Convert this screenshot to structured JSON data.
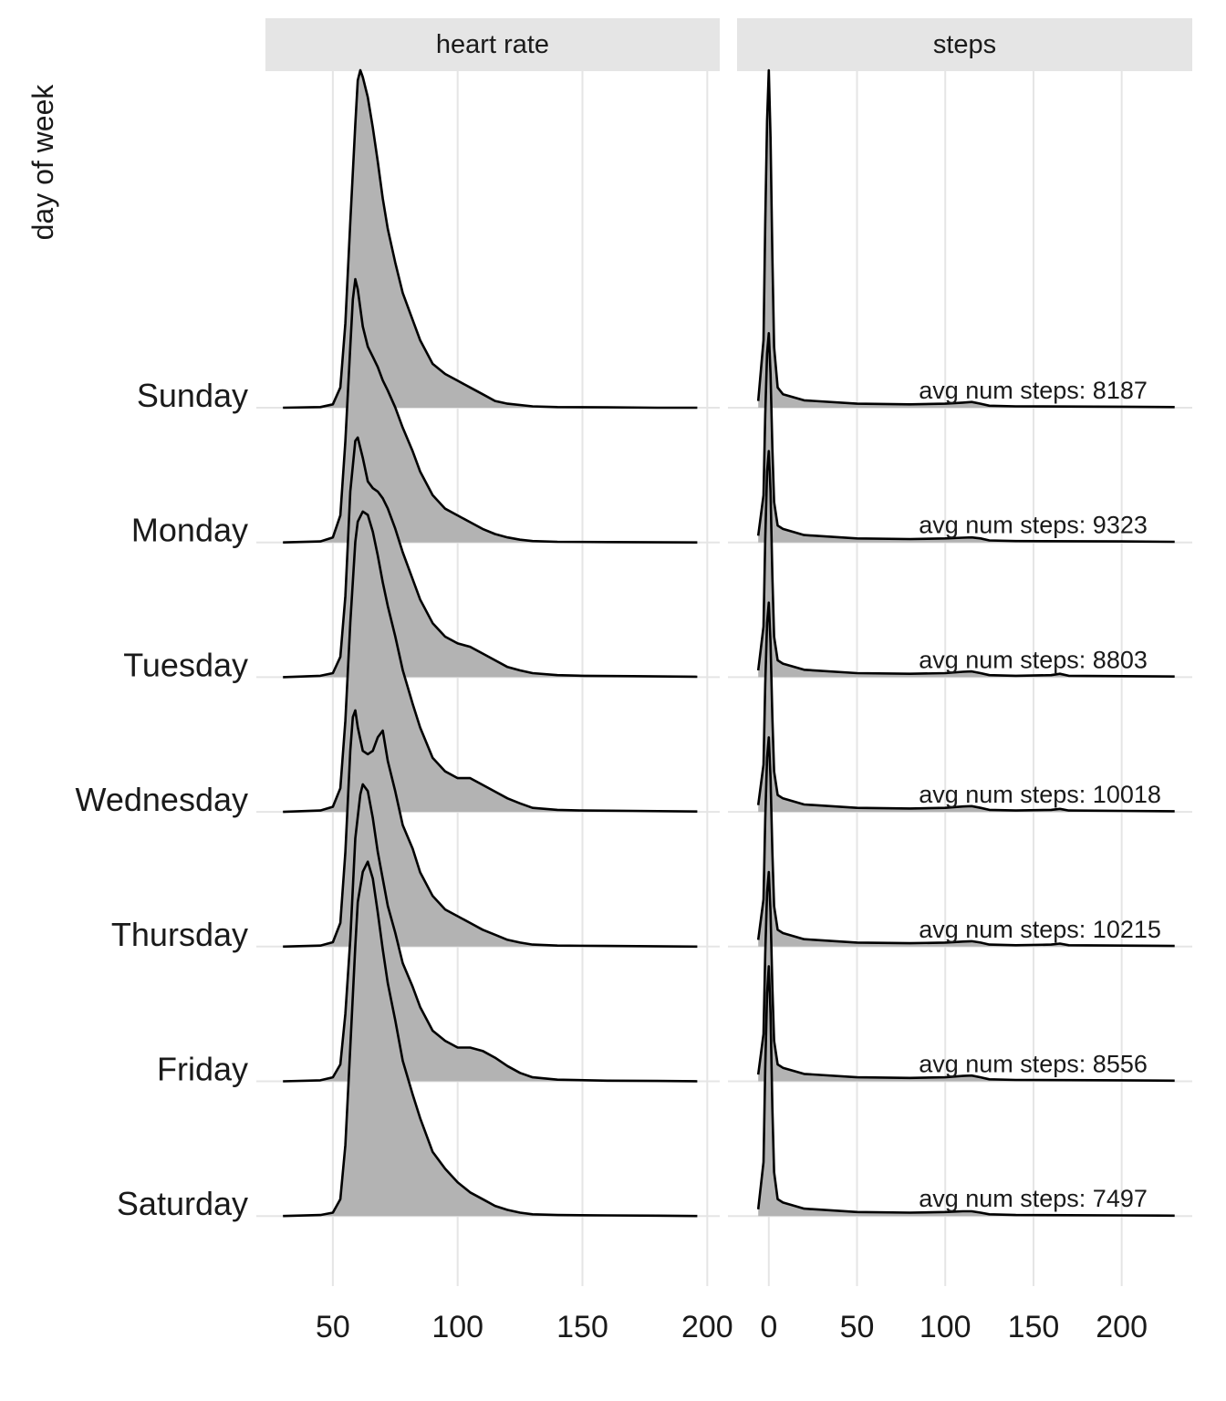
{
  "chart_data": {
    "type": "ridgeline",
    "ylabel": "day of week",
    "xlabel": "",
    "grid": true,
    "legend": "none",
    "fill_color": "#b3b3b3",
    "line_color": "#000000",
    "strip_color": "#e5e5e5",
    "grid_color": "#e5e5e5",
    "categories": [
      "Sunday",
      "Monday",
      "Tuesday",
      "Wednesday",
      "Thursday",
      "Friday",
      "Saturday"
    ],
    "panels": [
      {
        "title": "heart rate",
        "xlim": [
          23,
          205
        ],
        "xticks": [
          50,
          100,
          150,
          200
        ],
        "series": [
          {
            "name": "Sunday",
            "x": [
              30,
              45,
              50,
              53,
              55,
              57,
              59,
              60,
              61,
              62,
              64,
              66,
              68,
              70,
              72,
              75,
              78,
              82,
              85,
              90,
              95,
              100,
              105,
              110,
              115,
              120,
              130,
              140,
              160,
              180,
              196
            ],
            "density": [
              0,
              0.002,
              0.01,
              0.06,
              0.25,
              0.55,
              0.84,
              0.97,
              1.0,
              0.98,
              0.92,
              0.83,
              0.73,
              0.62,
              0.53,
              0.43,
              0.34,
              0.26,
              0.2,
              0.13,
              0.1,
              0.08,
              0.06,
              0.04,
              0.02,
              0.012,
              0.004,
              0.002,
              0.001,
              0,
              0
            ]
          },
          {
            "name": "Monday",
            "x": [
              30,
              45,
              50,
              53,
              55,
              57,
              58,
              59,
              60,
              62,
              64,
              66,
              68,
              70,
              72,
              75,
              78,
              82,
              85,
              90,
              95,
              100,
              105,
              110,
              115,
              120,
              125,
              130,
              140,
              160,
              196
            ],
            "density": [
              0,
              0.003,
              0.015,
              0.08,
              0.3,
              0.58,
              0.72,
              0.78,
              0.75,
              0.64,
              0.58,
              0.55,
              0.52,
              0.48,
              0.45,
              0.4,
              0.34,
              0.27,
              0.21,
              0.14,
              0.1,
              0.08,
              0.06,
              0.04,
              0.025,
              0.015,
              0.008,
              0.004,
              0.002,
              0.001,
              0
            ]
          },
          {
            "name": "Tuesday",
            "x": [
              30,
              45,
              50,
              53,
              55,
              57,
              59,
              60,
              62,
              64,
              66,
              68,
              70,
              72,
              75,
              78,
              82,
              85,
              90,
              95,
              100,
              105,
              110,
              115,
              120,
              125,
              130,
              140,
              150,
              170,
              196
            ],
            "density": [
              0,
              0.004,
              0.012,
              0.06,
              0.24,
              0.55,
              0.7,
              0.71,
              0.65,
              0.58,
              0.56,
              0.55,
              0.53,
              0.5,
              0.44,
              0.37,
              0.29,
              0.23,
              0.16,
              0.12,
              0.1,
              0.09,
              0.07,
              0.05,
              0.03,
              0.02,
              0.012,
              0.006,
              0.004,
              0.003,
              0.001
            ]
          },
          {
            "name": "Wednesday",
            "x": [
              30,
              45,
              50,
              53,
              55,
              57,
              59,
              60,
              62,
              64,
              66,
              68,
              70,
              72,
              75,
              78,
              82,
              85,
              90,
              95,
              100,
              105,
              110,
              115,
              120,
              125,
              130,
              140,
              150,
              170,
              196
            ],
            "density": [
              0,
              0.004,
              0.015,
              0.07,
              0.27,
              0.56,
              0.8,
              0.86,
              0.89,
              0.88,
              0.83,
              0.76,
              0.68,
              0.61,
              0.52,
              0.42,
              0.32,
              0.25,
              0.16,
              0.12,
              0.1,
              0.1,
              0.08,
              0.06,
              0.04,
              0.025,
              0.012,
              0.006,
              0.004,
              0.003,
              0.001
            ]
          },
          {
            "name": "Thursday",
            "x": [
              30,
              45,
              50,
              53,
              55,
              57,
              58,
              59,
              60,
              62,
              64,
              66,
              68,
              70,
              72,
              75,
              78,
              82,
              85,
              90,
              95,
              100,
              105,
              110,
              115,
              120,
              125,
              130,
              140,
              160,
              196
            ],
            "density": [
              0,
              0.003,
              0.013,
              0.07,
              0.28,
              0.58,
              0.68,
              0.7,
              0.65,
              0.58,
              0.57,
              0.58,
              0.62,
              0.64,
              0.55,
              0.46,
              0.36,
              0.29,
              0.22,
              0.15,
              0.11,
              0.09,
              0.07,
              0.05,
              0.035,
              0.02,
              0.012,
              0.006,
              0.003,
              0.002,
              0
            ]
          },
          {
            "name": "Friday",
            "x": [
              30,
              45,
              50,
              53,
              55,
              57,
              59,
              61,
              62,
              64,
              66,
              68,
              70,
              72,
              75,
              78,
              82,
              85,
              90,
              95,
              100,
              105,
              110,
              115,
              120,
              125,
              130,
              140,
              160,
              180,
              196
            ],
            "density": [
              0,
              0.003,
              0.012,
              0.05,
              0.2,
              0.42,
              0.72,
              0.85,
              0.88,
              0.86,
              0.78,
              0.68,
              0.6,
              0.52,
              0.44,
              0.35,
              0.28,
              0.22,
              0.15,
              0.12,
              0.1,
              0.1,
              0.09,
              0.07,
              0.045,
              0.025,
              0.012,
              0.005,
              0.002,
              0.001,
              0
            ]
          },
          {
            "name": "Saturday",
            "x": [
              30,
              45,
              50,
              53,
              55,
              57,
              59,
              60,
              62,
              64,
              66,
              68,
              70,
              72,
              75,
              78,
              82,
              85,
              90,
              95,
              100,
              105,
              110,
              115,
              120,
              125,
              130,
              140,
              160,
              180,
              196
            ],
            "density": [
              0,
              0.003,
              0.01,
              0.05,
              0.21,
              0.5,
              0.8,
              0.93,
              1.02,
              1.05,
              1.0,
              0.9,
              0.79,
              0.69,
              0.58,
              0.46,
              0.36,
              0.29,
              0.19,
              0.14,
              0.1,
              0.07,
              0.05,
              0.03,
              0.018,
              0.01,
              0.005,
              0.003,
              0.002,
              0.001,
              0
            ]
          }
        ]
      },
      {
        "title": "steps",
        "xlim": [
          -18,
          240
        ],
        "xticks": [
          0,
          50,
          100,
          150,
          200
        ],
        "annotation_x": 85,
        "series": [
          {
            "name": "Sunday",
            "annotation": "avg num steps: 8187",
            "x": [
              -6,
              -3,
              -2,
              -1,
              0,
              1,
              2,
              3,
              5,
              8,
              20,
              50,
              80,
              100,
              110,
              115,
              120,
              125,
              140,
              200,
              230
            ],
            "density": [
              0.02,
              0.2,
              0.55,
              0.85,
              1.0,
              0.8,
              0.45,
              0.18,
              0.06,
              0.04,
              0.022,
              0.012,
              0.01,
              0.012,
              0.015,
              0.017,
              0.012,
              0.006,
              0.004,
              0.003,
              0.002
            ]
          },
          {
            "name": "Monday",
            "annotation": "avg num steps: 9323",
            "x": [
              -6,
              -3,
              -2,
              -1,
              0,
              1,
              2,
              3,
              5,
              8,
              20,
              50,
              80,
              100,
              110,
              115,
              120,
              125,
              140,
              200,
              230
            ],
            "density": [
              0.02,
              0.14,
              0.38,
              0.56,
              0.62,
              0.5,
              0.28,
              0.12,
              0.05,
              0.04,
              0.022,
              0.012,
              0.01,
              0.012,
              0.014,
              0.015,
              0.012,
              0.006,
              0.004,
              0.003,
              0.002
            ]
          },
          {
            "name": "Tuesday",
            "annotation": "avg num steps: 8803",
            "x": [
              -6,
              -3,
              -2,
              -1,
              0,
              1,
              2,
              3,
              5,
              8,
              20,
              50,
              80,
              100,
              110,
              115,
              120,
              125,
              140,
              160,
              165,
              170,
              200,
              230
            ],
            "density": [
              0.02,
              0.15,
              0.41,
              0.61,
              0.67,
              0.55,
              0.3,
              0.12,
              0.05,
              0.04,
              0.022,
              0.012,
              0.01,
              0.012,
              0.016,
              0.017,
              0.012,
              0.006,
              0.004,
              0.006,
              0.01,
              0.004,
              0.003,
              0.002
            ]
          },
          {
            "name": "Wednesday",
            "annotation": "avg num steps: 10018",
            "x": [
              -6,
              -3,
              -2,
              -1,
              0,
              1,
              2,
              3,
              5,
              8,
              20,
              50,
              80,
              100,
              110,
              115,
              120,
              125,
              140,
              160,
              165,
              170,
              200,
              230
            ],
            "density": [
              0.02,
              0.14,
              0.38,
              0.56,
              0.62,
              0.5,
              0.28,
              0.12,
              0.05,
              0.04,
              0.022,
              0.012,
              0.01,
              0.012,
              0.016,
              0.017,
              0.012,
              0.006,
              0.004,
              0.006,
              0.009,
              0.004,
              0.003,
              0.002
            ]
          },
          {
            "name": "Thursday",
            "annotation": "avg num steps: 10215",
            "x": [
              -6,
              -3,
              -2,
              -1,
              0,
              1,
              2,
              3,
              5,
              8,
              20,
              50,
              80,
              100,
              110,
              115,
              120,
              125,
              140,
              160,
              165,
              170,
              200,
              230
            ],
            "density": [
              0.02,
              0.14,
              0.38,
              0.56,
              0.62,
              0.5,
              0.28,
              0.12,
              0.05,
              0.04,
              0.022,
              0.012,
              0.01,
              0.012,
              0.015,
              0.016,
              0.012,
              0.006,
              0.004,
              0.006,
              0.009,
              0.004,
              0.003,
              0.002
            ]
          },
          {
            "name": "Friday",
            "annotation": "avg num steps: 8556",
            "x": [
              -6,
              -3,
              -2,
              -1,
              0,
              1,
              2,
              3,
              5,
              8,
              20,
              50,
              80,
              100,
              110,
              115,
              120,
              125,
              140,
              200,
              230
            ],
            "density": [
              0.02,
              0.14,
              0.38,
              0.56,
              0.62,
              0.5,
              0.28,
              0.12,
              0.05,
              0.04,
              0.022,
              0.012,
              0.01,
              0.012,
              0.016,
              0.017,
              0.012,
              0.006,
              0.004,
              0.003,
              0.002
            ]
          },
          {
            "name": "Saturday",
            "annotation": "avg num steps: 7497",
            "x": [
              -6,
              -3,
              -2,
              -1,
              0,
              1,
              2,
              3,
              5,
              8,
              20,
              50,
              80,
              100,
              110,
              115,
              120,
              125,
              140,
              200,
              230
            ],
            "density": [
              0.02,
              0.16,
              0.44,
              0.66,
              0.74,
              0.6,
              0.32,
              0.13,
              0.05,
              0.04,
              0.022,
              0.012,
              0.01,
              0.012,
              0.014,
              0.014,
              0.01,
              0.005,
              0.003,
              0.002,
              0.001
            ]
          }
        ]
      }
    ]
  }
}
